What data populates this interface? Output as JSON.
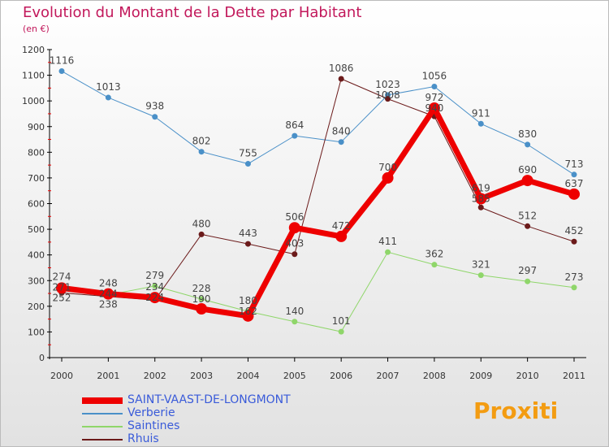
{
  "chart_data": {
    "type": "line",
    "title": "Evolution du Montant de la Dette par Habitant",
    "subtitle": "(en €)",
    "x": [
      "2000",
      "2001",
      "2002",
      "2003",
      "2004",
      "2005",
      "2006",
      "2007",
      "2008",
      "2009",
      "2010",
      "2011"
    ],
    "ylim": [
      0,
      1200
    ],
    "yticks": [
      0,
      100,
      200,
      300,
      400,
      500,
      600,
      700,
      800,
      900,
      1000,
      1100,
      1200
    ],
    "series": [
      {
        "name": "Verberie",
        "color": "#4a90c8",
        "width": 1,
        "values": [
          1116,
          1013,
          938,
          802,
          755,
          864,
          840,
          1023,
          1056,
          911,
          830,
          713
        ]
      },
      {
        "name": "Saintines",
        "color": "#8fd66a",
        "width": 1,
        "values": [
          274,
          244,
          279,
          228,
          180,
          140,
          101,
          411,
          362,
          321,
          297,
          273
        ]
      },
      {
        "name": "Rhuis",
        "color": "#6b1a1a",
        "width": 1,
        "values": [
          252,
          238,
          224,
          480,
          443,
          403,
          1086,
          1008,
          940,
          585,
          512,
          452
        ]
      },
      {
        "name": "SAINT-VAAST-DE-LONGMONT",
        "color": "#ee0000",
        "width": 7,
        "values": [
          271,
          248,
          234,
          190,
          162,
          506,
          472,
          700,
          972,
          619,
          690,
          637
        ]
      }
    ],
    "legend_order": [
      "SAINT-VAAST-DE-LONGMONT",
      "Verberie",
      "Saintines",
      "Rhuis"
    ]
  },
  "logo": "Proxiti"
}
